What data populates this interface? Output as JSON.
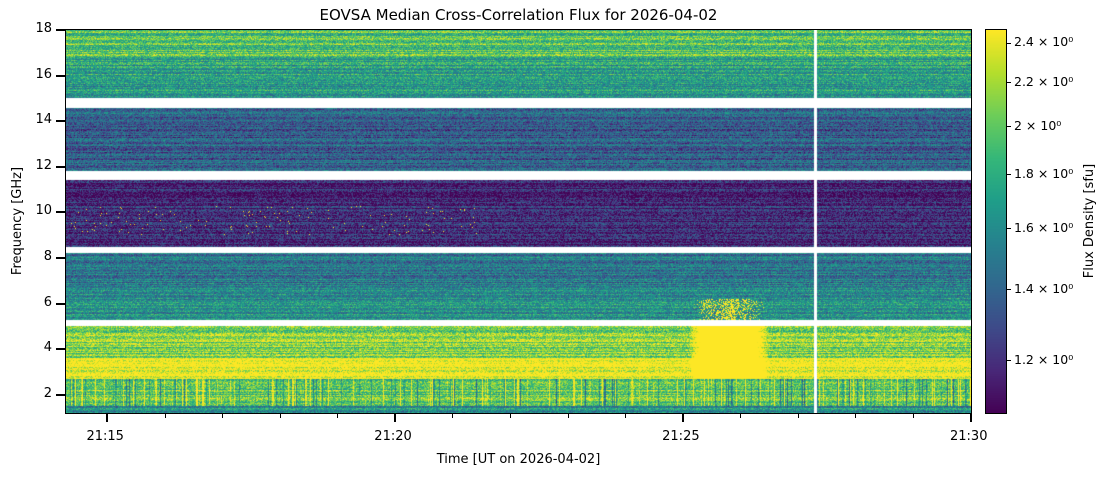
{
  "chart_data": {
    "type": "heatmap",
    "title": "EOVSA Median Cross-Correlation Flux for 2026-04-02",
    "xlabel": "Time [UT on 2026-04-02]",
    "ylabel": "Frequency [GHz]",
    "colorbar_label": "Flux Density [sfu]",
    "colormap": "viridis",
    "colorbar_scale": "log",
    "clim": [
      1.07,
      2.47
    ],
    "xlim_minutes": [
      14.28,
      30
    ],
    "xticks": [
      {
        "min": 15,
        "label": "21:15"
      },
      {
        "min": 20,
        "label": "21:20"
      },
      {
        "min": 25,
        "label": "21:25"
      },
      {
        "min": 30,
        "label": "21:30"
      }
    ],
    "ylim": [
      1.2,
      18
    ],
    "yticks": [
      2,
      4,
      6,
      8,
      10,
      12,
      14,
      16,
      18
    ],
    "cbar_ticks": [
      {
        "v": 2.4,
        "label": "2.4 × 10⁰"
      },
      {
        "v": 2.2,
        "label": "2.2 × 10⁰"
      },
      {
        "v": 2.0,
        "label": "2 × 10⁰"
      },
      {
        "v": 1.8,
        "label": "1.8 × 10⁰"
      },
      {
        "v": 1.6,
        "label": "1.6 × 10⁰"
      },
      {
        "v": 1.4,
        "label": "1.4 × 10⁰"
      },
      {
        "v": 1.2,
        "label": "1.2 × 10⁰"
      }
    ],
    "bands": [
      {
        "f": [
          16.8,
          18
        ],
        "level": 1.95
      },
      {
        "f": [
          15.0,
          16.8
        ],
        "level": 1.7
      },
      {
        "f": [
          11.8,
          14.6
        ],
        "level": 1.38
      },
      {
        "f": [
          8.5,
          11.4
        ],
        "level": 1.18
      },
      {
        "f": [
          6.6,
          8.2
        ],
        "level": 1.5
      },
      {
        "f": [
          5.3,
          6.6
        ],
        "level": 1.65
      },
      {
        "f": [
          3.6,
          5.0
        ],
        "level": 2.1
      },
      {
        "f": [
          2.7,
          3.6
        ],
        "level": 2.45
      },
      {
        "f": [
          1.5,
          2.7
        ],
        "level": 2.0
      },
      {
        "f": [
          1.2,
          1.5
        ],
        "level": 1.6
      }
    ],
    "gaps_GHz": [
      [
        14.6,
        15.0
      ],
      [
        11.4,
        11.8
      ],
      [
        8.2,
        8.5
      ],
      [
        5.0,
        5.3
      ]
    ],
    "burst": {
      "t_min": [
        25.1,
        26.5
      ],
      "f": [
        2.7,
        6.2
      ],
      "level": 2.47
    },
    "missing_time_min": 27.3
  }
}
